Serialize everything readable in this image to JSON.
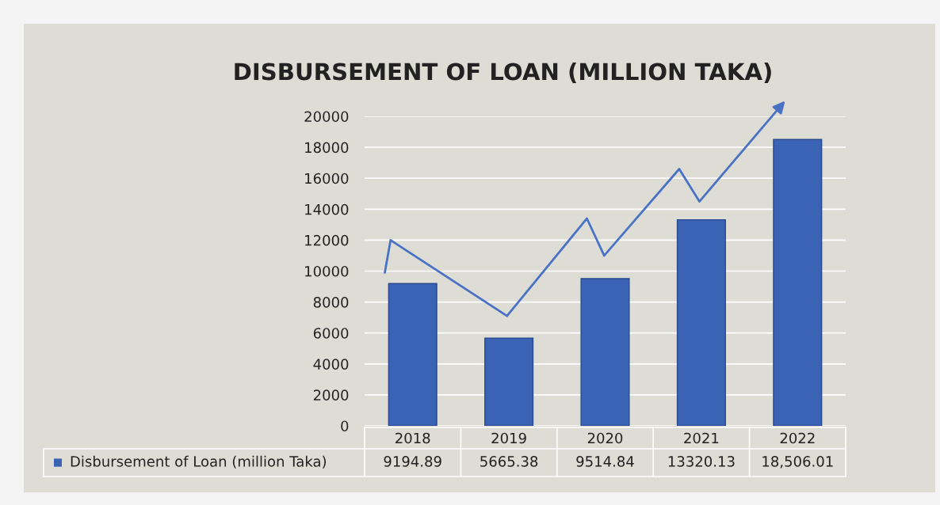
{
  "chart_data": {
    "type": "bar",
    "title": "DISBURSEMENT OF LOAN (MILLION TAKA)",
    "categories": [
      "2018",
      "2019",
      "2020",
      "2021",
      "2022"
    ],
    "series": [
      {
        "name": "Disbursement of Loan (million Taka)",
        "color": "#3a62b5",
        "values": [
          9194.89,
          5665.38,
          9514.84,
          13320.13,
          18506.01
        ],
        "value_labels": [
          "9194.89",
          "5665.38",
          "9514.84",
          "13320.13",
          "18,506.01"
        ]
      }
    ],
    "ylim": [
      0,
      20000
    ],
    "yticks": [
      0,
      2000,
      4000,
      6000,
      8000,
      10000,
      12000,
      14000,
      16000,
      18000,
      20000
    ],
    "grid": "y",
    "legend": "bottom"
  }
}
